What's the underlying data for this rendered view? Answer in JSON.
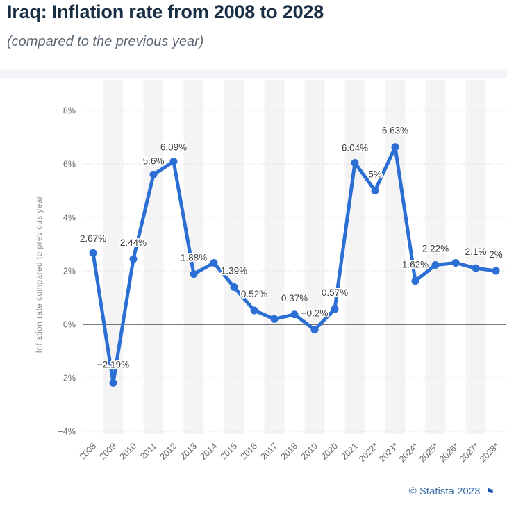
{
  "header": {
    "title": "Iraq: Inflation rate from 2008 to 2028",
    "subtitle": "(compared to the previous year)"
  },
  "footer": {
    "copyright": "© Statista 2023",
    "flag_icon": "⚑"
  },
  "colors": {
    "accent_line": "#2b6ed4",
    "title_text": "#1a2e44",
    "subtitle_text": "#5c6873",
    "axis_text": "#666666",
    "axis_title_text": "#8a8f94",
    "point_label_text": "#3c3c3c",
    "gridline": "#c8c8c8",
    "zero_line": "#4d4d4d",
    "stripe": "#f4f4f4",
    "page_gap": "#f3f5f9",
    "copyright_link": "#3d70a9"
  },
  "chart_data": {
    "type": "line",
    "title": "Iraq: Inflation rate from 2008 to 2028",
    "subtitle": "(compared to the previous year)",
    "ylabel": "Inflation rate compared to previous year",
    "xlabel": "",
    "ylim": [
      -4,
      8
    ],
    "ytick_values": [
      8,
      6,
      4,
      2,
      0,
      -2,
      -4
    ],
    "ytick_labels": [
      "8%",
      "6%",
      "4%",
      "2%",
      "0%",
      "−2%",
      "−4%"
    ],
    "grid": "horizontal dotted gridlines; solid dark zero line; alternating vertical column stripes",
    "legend_position": "none",
    "series_name": "Inflation rate compared to previous year",
    "categories": [
      "2008",
      "2009",
      "2010",
      "2011",
      "2012",
      "2013",
      "2014",
      "2015",
      "2016",
      "2017",
      "2018",
      "2019",
      "2020",
      "2021",
      "2022*",
      "2023*",
      "2024*",
      "2025*",
      "2026*",
      "2027*",
      "2028*"
    ],
    "values": [
      2.67,
      -2.19,
      2.44,
      5.6,
      6.09,
      1.88,
      2.3,
      1.39,
      0.52,
      0.2,
      0.37,
      -0.2,
      0.57,
      6.04,
      5,
      6.63,
      1.62,
      2.22,
      2.3,
      2.1,
      2
    ],
    "point_labels": [
      "2.67%",
      "−2.19%",
      "2.44%",
      "5.6%",
      "6.09%",
      "1.88%",
      "",
      "1.39%",
      "0.52%",
      "",
      "0.37%",
      "−0.2%",
      "0.57%",
      "6.04%",
      "5%",
      "6.63%",
      "1.62%",
      "2.22%",
      "",
      "2.1%",
      "2%"
    ]
  }
}
